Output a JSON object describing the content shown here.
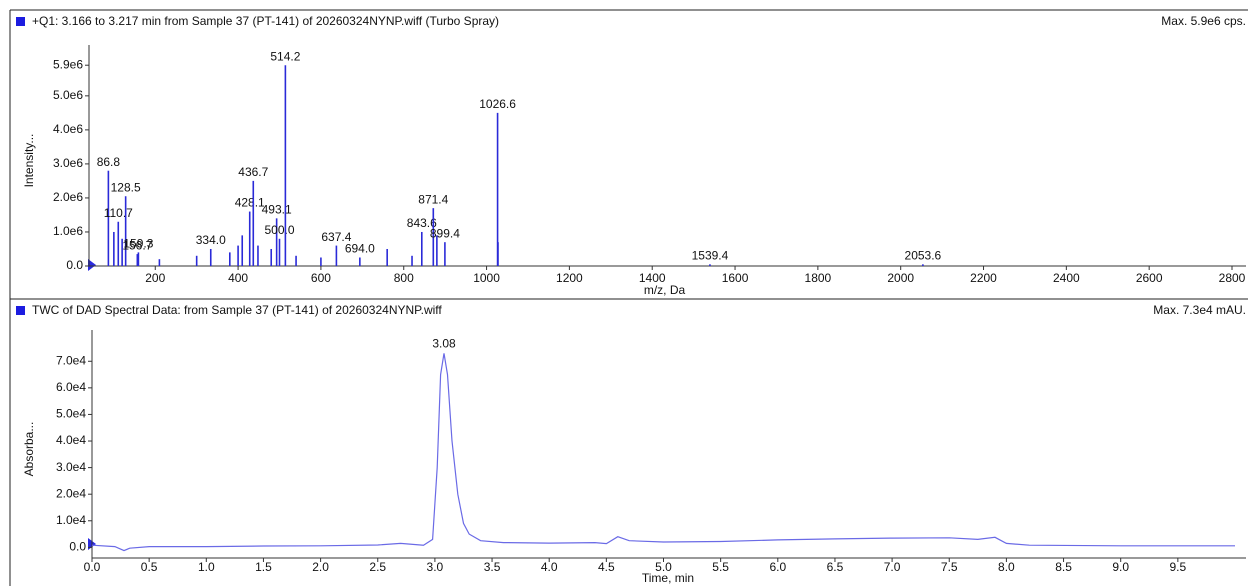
{
  "chart_data": [
    {
      "type": "stem",
      "title": "+Q1: 3.166 to 3.217 min from Sample 37 (PT-141) of 20260324NYNP.wiff (Turbo Spray)",
      "max_label": "Max. 5.9e6 cps.",
      "x_label": "m/z, Da",
      "y_label": "Intensity...",
      "color": "#2a2ad8",
      "xlim": [
        40,
        2800
      ],
      "ylim": [
        0,
        6200000
      ],
      "xticks": [
        200,
        400,
        600,
        800,
        1000,
        1200,
        1400,
        1600,
        1800,
        2000,
        2200,
        2400,
        2600,
        2800
      ],
      "yticks": [
        {
          "value": 0,
          "label": "0.0"
        },
        {
          "value": 1000000,
          "label": "1.0e6"
        },
        {
          "value": 2000000,
          "label": "2.0e6"
        },
        {
          "value": 3000000,
          "label": "3.0e6"
        },
        {
          "value": 4000000,
          "label": "4.0e6"
        },
        {
          "value": 5000000,
          "label": "5.0e6"
        },
        {
          "value": 5900000,
          "label": "5.9e6"
        }
      ],
      "x": [
        86.8,
        100,
        110.7,
        120,
        128.5,
        156.7,
        159.3,
        210,
        300,
        334.0,
        380,
        400,
        410,
        428.1,
        436.7,
        448,
        480,
        493.1,
        500.0,
        514.2,
        540,
        600,
        637.4,
        694.0,
        760,
        820,
        843.6,
        871.4,
        880,
        899.4,
        1026.6,
        1027.6,
        1539.4,
        2053.6
      ],
      "values": [
        2800000,
        1000000,
        1300000,
        800000,
        2050000,
        350000,
        400000,
        200000,
        300000,
        500000,
        400000,
        600000,
        900000,
        1600000,
        2500000,
        600000,
        500000,
        1400000,
        800000,
        5900000,
        300000,
        250000,
        600000,
        250000,
        500000,
        300000,
        1000000,
        1700000,
        900000,
        700000,
        4500000,
        700000,
        50000,
        50000
      ],
      "labels": [
        "86.8",
        null,
        "110.7",
        null,
        "128.5",
        "156.7",
        "159.3",
        null,
        null,
        "334.0",
        null,
        null,
        null,
        "428.1",
        "436.7",
        null,
        null,
        "493.1",
        "500.0",
        "514.2",
        null,
        null,
        "637.4",
        "694.0",
        null,
        null,
        "843.6",
        "871.4",
        null,
        "899.4",
        "1026.6",
        null,
        "1539.4",
        "2053.6"
      ]
    },
    {
      "type": "line",
      "title": "TWC of DAD Spectral Data: from Sample 37 (PT-141) of 20260324NYNP.wiff",
      "max_label": "Max. 7.3e4 mAU.",
      "x_label": "Time, min",
      "y_label": "Absorba...",
      "color": "#6a6ae6",
      "xlim": [
        0,
        10
      ],
      "ylim": [
        -4000,
        78000
      ],
      "xticks": [
        {
          "value": 0,
          "label": "0.0"
        },
        0.5,
        {
          "value": 1,
          "label": "1.0"
        },
        1.5,
        {
          "value": 2,
          "label": "2.0"
        },
        2.5,
        {
          "value": 3,
          "label": "3.0"
        },
        3.5,
        {
          "value": 4,
          "label": "4.0"
        },
        4.5,
        {
          "value": 5,
          "label": "5.0"
        },
        5.5,
        {
          "value": 6,
          "label": "6.0"
        },
        6.5,
        {
          "value": 7,
          "label": "7.0"
        },
        7.5,
        {
          "value": 8,
          "label": "8.0"
        },
        8.5,
        {
          "value": 9,
          "label": "9.0"
        },
        9.5
      ],
      "yticks": [
        {
          "value": 0,
          "label": "0.0"
        },
        {
          "value": 10000,
          "label": "1.0e4"
        },
        {
          "value": 20000,
          "label": "2.0e4"
        },
        {
          "value": 30000,
          "label": "3.0e4"
        },
        {
          "value": 40000,
          "label": "4.0e4"
        },
        {
          "value": 50000,
          "label": "5.0e4"
        },
        {
          "value": 60000,
          "label": "6.0e4"
        },
        {
          "value": 70000,
          "label": "7.0e4"
        }
      ],
      "x": [
        0,
        0.2,
        0.28,
        0.33,
        0.5,
        1.0,
        1.5,
        2.0,
        2.5,
        2.7,
        2.9,
        2.98,
        3.02,
        3.05,
        3.08,
        3.11,
        3.15,
        3.2,
        3.25,
        3.3,
        3.4,
        3.6,
        4.0,
        4.4,
        4.5,
        4.6,
        4.7,
        5.0,
        5.5,
        6.0,
        6.5,
        7.0,
        7.5,
        7.75,
        7.9,
        8.0,
        8.2,
        9.0,
        10.0
      ],
      "values": [
        800,
        300,
        -1200,
        -300,
        300,
        300,
        500,
        600,
        900,
        1500,
        800,
        3000,
        30000,
        65000,
        73000,
        65000,
        40000,
        20000,
        9000,
        5000,
        2500,
        1800,
        1600,
        1800,
        1400,
        4000,
        2500,
        2000,
        2200,
        2800,
        3200,
        3500,
        3600,
        3000,
        3800,
        1500,
        800,
        600,
        600
      ],
      "annotated_peaks": [
        {
          "x": 3.08,
          "y": 73000
        }
      ]
    }
  ]
}
